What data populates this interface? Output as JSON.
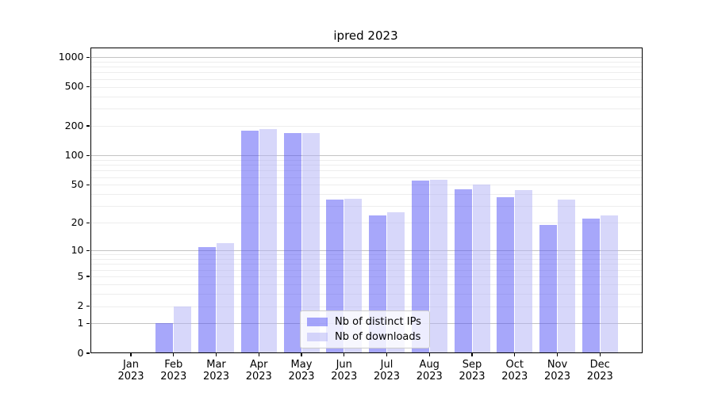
{
  "title": "ipred 2023",
  "chart_data": {
    "type": "bar",
    "title": "ipred 2023",
    "scale": "log1p",
    "grid": true,
    "legend_position": "lower center",
    "categories": [
      "Jan",
      "Feb",
      "Mar",
      "Apr",
      "May",
      "Jun",
      "Jul",
      "Aug",
      "Sep",
      "Oct",
      "Nov",
      "Dec"
    ],
    "year": "2023",
    "series": [
      {
        "name": "Nb of distinct IPs",
        "color": "#5050f5",
        "color_on_white": "#a8a8fa",
        "values": [
          0,
          1,
          11,
          180,
          170,
          35,
          24,
          55,
          45,
          37,
          19,
          22
        ]
      },
      {
        "name": "Nb of downloads",
        "color": "#b0b0f5",
        "color_on_white": "#d8d8fa",
        "values": [
          0,
          2,
          12,
          186,
          168,
          36,
          26,
          56,
          50,
          44,
          35,
          24
        ]
      }
    ],
    "y_ticks": [
      0,
      1,
      2,
      5,
      10,
      20,
      50,
      100,
      200,
      500,
      1000
    ],
    "y_major_gridlines": [
      1,
      10,
      100,
      1000
    ],
    "ylim": [
      0,
      1250
    ],
    "xlabel": "",
    "ylabel": ""
  }
}
